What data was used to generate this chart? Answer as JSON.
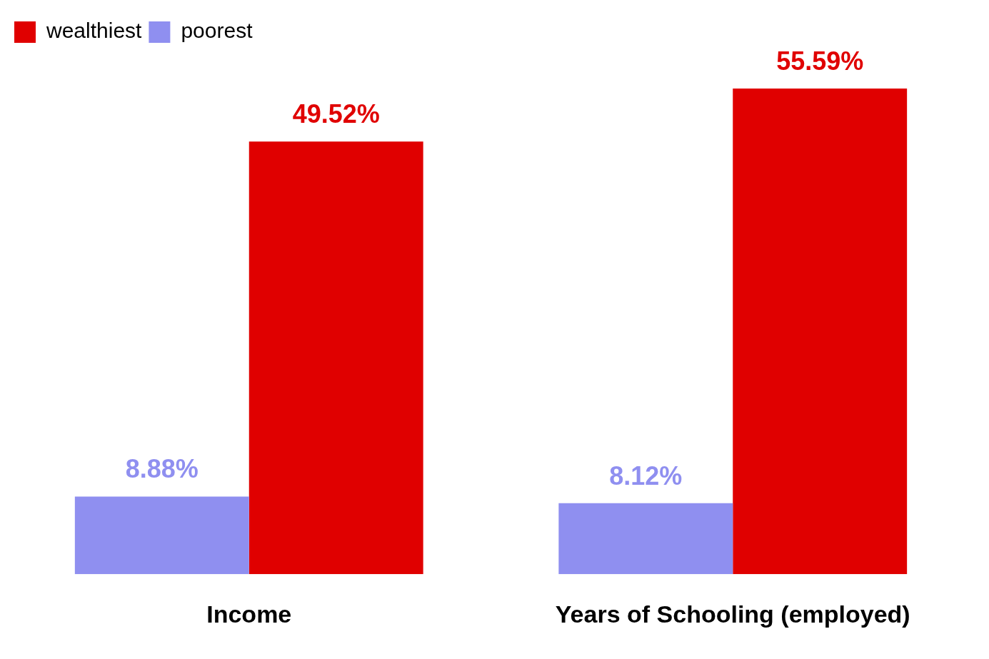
{
  "chart_data": {
    "type": "bar",
    "categories": [
      "Income",
      "Years of Schooling (employed)"
    ],
    "legend": "top left",
    "series": [
      {
        "name": "poorest",
        "color": "#8f8ff0",
        "values": [
          8.88,
          8.12
        ],
        "value_labels": [
          "8.88%",
          "8.12%"
        ]
      },
      {
        "name": "wealthiest",
        "color": "#e00000",
        "values": [
          49.52,
          55.59
        ],
        "value_labels": [
          "49.52%",
          "55.59%"
        ]
      }
    ]
  }
}
